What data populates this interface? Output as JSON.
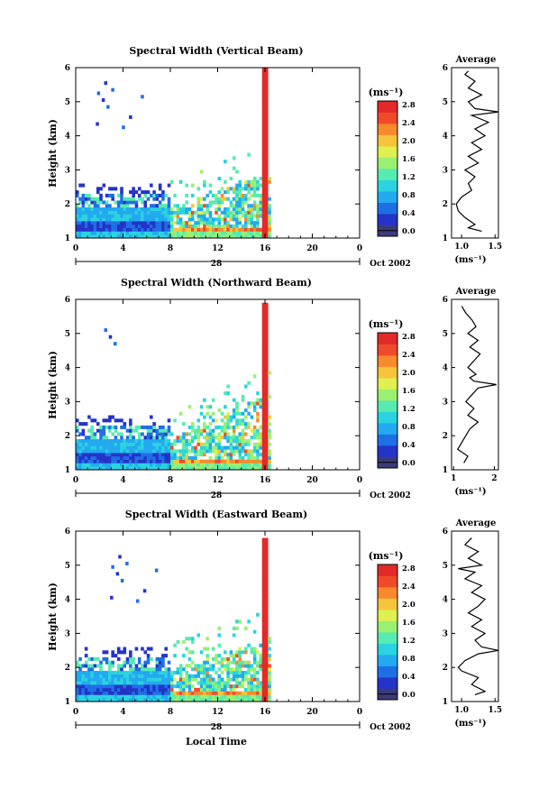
{
  "shared": {
    "ylabel": "Height (km)",
    "xlabel": "Local Time",
    "day_label": "28",
    "month_label": "Oct 2002",
    "cbar_unit": "(ms⁻¹)",
    "avg_title": "Average",
    "avg_unit": "(ms⁻¹)",
    "xticks": [
      "0",
      "4",
      "8",
      "12",
      "16",
      "20",
      "0"
    ],
    "yticks": [
      "1",
      "2",
      "3",
      "4",
      "5",
      "6"
    ],
    "cbar_ticks": [
      "0.0",
      "0.4",
      "0.8",
      "1.2",
      "1.6",
      "2.0",
      "2.4",
      "2.8"
    ]
  },
  "colormap": [
    "#3b3b78",
    "#2433c8",
    "#1e6fe6",
    "#22a9f0",
    "#2ad3df",
    "#56ebb0",
    "#9af070",
    "#dff050",
    "#f6c43a",
    "#f68a2c",
    "#ef4a2a",
    "#e32a28"
  ],
  "chart_data": [
    {
      "type": "heatmap",
      "title": "Spectral Width (Vertical Beam)",
      "x_range_hours": [
        0,
        24
      ],
      "y_range_km": [
        1,
        6
      ],
      "profile": {
        "type": "line",
        "xticks": [
          "1.0",
          "1.5"
        ],
        "xlim": [
          0.85,
          1.55
        ],
        "heights": [
          1.2,
          1.3,
          1.4,
          1.6,
          1.8,
          2.0,
          2.2,
          2.4,
          2.6,
          2.8,
          3.0,
          3.2,
          3.4,
          3.6,
          3.8,
          4.0,
          4.2,
          4.4,
          4.6,
          4.7,
          4.8,
          5.0,
          5.2,
          5.4,
          5.6,
          5.8,
          5.9
        ],
        "values": [
          1.3,
          1.1,
          1.2,
          1.05,
          0.95,
          0.92,
          1.0,
          1.15,
          1.1,
          1.2,
          1.05,
          1.25,
          1.1,
          1.3,
          1.15,
          1.35,
          1.2,
          1.4,
          1.15,
          1.55,
          1.2,
          1.1,
          1.3,
          1.1,
          1.2,
          1.05,
          1.1
        ]
      }
    },
    {
      "type": "heatmap",
      "title": "Spectral Width (Northward Beam)",
      "x_range_hours": [
        0,
        24
      ],
      "y_range_km": [
        1,
        6
      ],
      "profile": {
        "type": "line",
        "xticks": [
          "1",
          "2"
        ],
        "xlim": [
          0.95,
          2.1
        ],
        "heights": [
          1.2,
          1.4,
          1.6,
          1.8,
          2.0,
          2.2,
          2.4,
          2.6,
          2.8,
          3.0,
          3.2,
          3.4,
          3.5,
          3.6,
          3.7,
          3.8,
          4.0,
          4.2,
          4.4,
          4.6,
          4.8,
          5.0,
          5.2,
          5.4,
          5.6,
          5.8
        ],
        "values": [
          1.25,
          1.35,
          1.1,
          1.2,
          1.3,
          1.4,
          1.6,
          1.35,
          1.5,
          1.3,
          1.45,
          1.6,
          2.05,
          1.5,
          1.4,
          1.55,
          1.35,
          1.5,
          1.65,
          1.4,
          1.6,
          1.35,
          1.55,
          1.45,
          1.3,
          1.2
        ]
      }
    },
    {
      "type": "heatmap",
      "title": "Spectral Width (Eastward Beam)",
      "x_range_hours": [
        0,
        24
      ],
      "y_range_km": [
        1,
        6
      ],
      "profile": {
        "type": "line",
        "xticks": [
          "1.0",
          "1.5"
        ],
        "xlim": [
          0.85,
          1.55
        ],
        "heights": [
          1.2,
          1.3,
          1.5,
          1.7,
          1.9,
          2.0,
          2.2,
          2.4,
          2.5,
          2.6,
          2.8,
          3.0,
          3.2,
          3.4,
          3.6,
          3.8,
          4.0,
          4.2,
          4.4,
          4.6,
          4.8,
          4.9,
          5.0,
          5.2,
          5.4,
          5.6,
          5.8
        ],
        "values": [
          1.2,
          1.35,
          1.15,
          1.25,
          1.0,
          0.95,
          1.05,
          1.25,
          1.55,
          1.3,
          1.2,
          1.35,
          1.15,
          1.3,
          1.1,
          1.25,
          1.35,
          1.15,
          1.3,
          1.05,
          1.2,
          0.95,
          1.3,
          1.1,
          1.25,
          1.05,
          1.15
        ]
      }
    }
  ]
}
